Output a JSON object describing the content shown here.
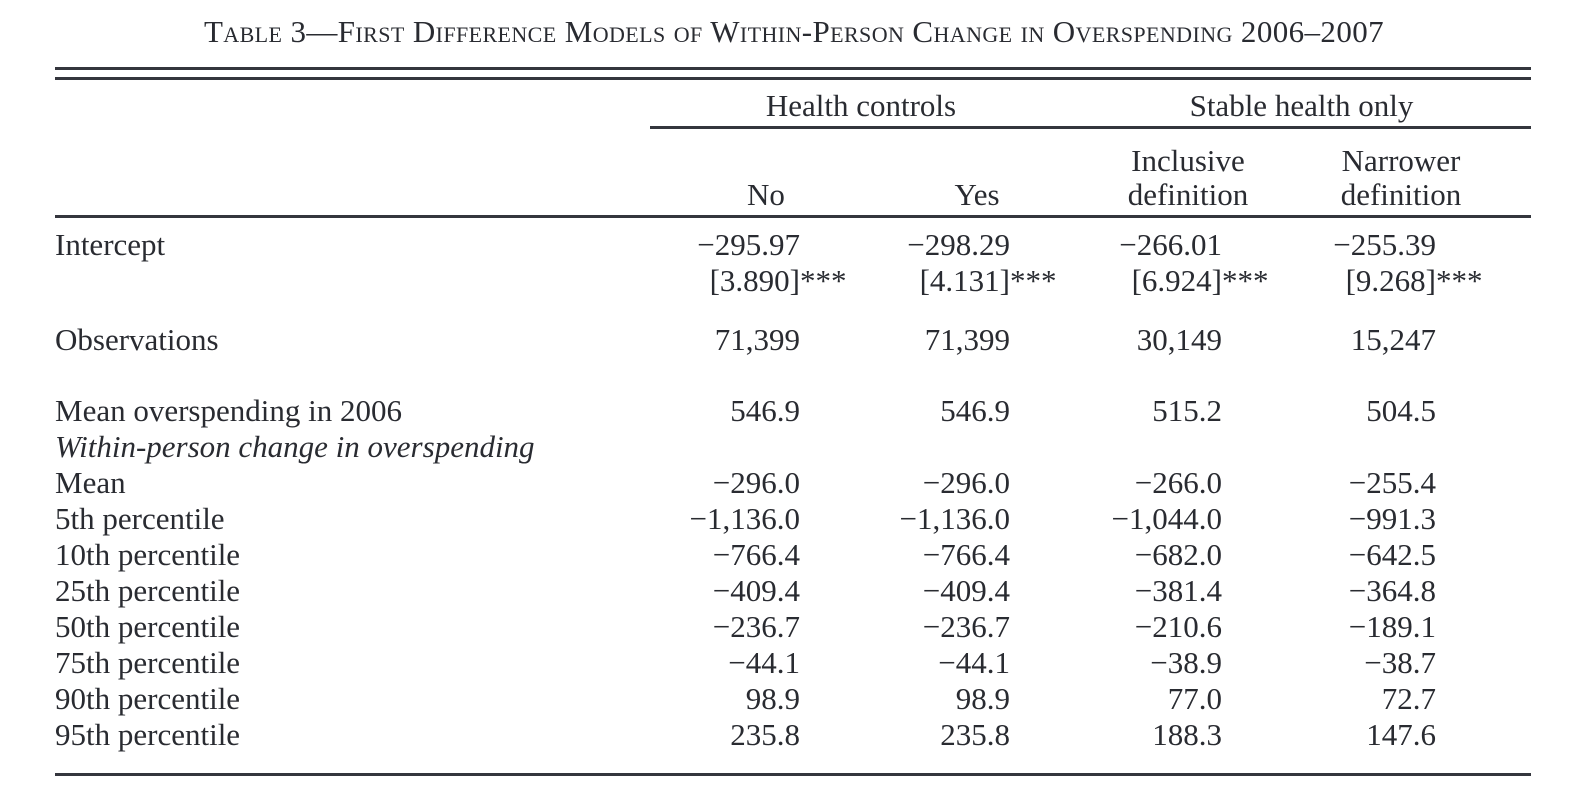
{
  "colors": {
    "ink": "#292b31",
    "rule": "#34363d",
    "background": "#ffffff"
  },
  "title": "Table 3—First Difference Models of Within-Person Change in Overspending 2006–2007",
  "header": {
    "spanners": [
      {
        "label": "Health controls"
      },
      {
        "label": "Stable health only"
      }
    ],
    "columns": [
      {
        "label": "No"
      },
      {
        "label": "Yes"
      },
      {
        "label": "Inclusive definition"
      },
      {
        "label": "Narrower definition"
      }
    ]
  },
  "rows": [
    {
      "label": "Intercept",
      "values": [
        "−295.97",
        "−298.29",
        "−266.01",
        "−255.39"
      ]
    },
    {
      "label": "",
      "values": [
        "[3.890]",
        "[4.131]",
        "[6.924]",
        "[9.268]"
      ],
      "stars": [
        "***",
        "***",
        "***",
        "***"
      ]
    },
    {
      "label": "Observations",
      "values": [
        "71,399",
        "71,399",
        "30,149",
        "15,247"
      ]
    },
    {
      "label": "Mean overspending in 2006",
      "values": [
        "546.9",
        "546.9",
        "515.2",
        "504.5"
      ]
    },
    {
      "label": "Within-person change in overspending",
      "style": "italic",
      "values": [
        "",
        "",
        "",
        ""
      ]
    },
    {
      "label": "Mean",
      "values": [
        "−296.0",
        "−296.0",
        "−266.0",
        "−255.4"
      ]
    },
    {
      "label": "5th percentile",
      "values": [
        "−1,136.0",
        "−1,136.0",
        "−1,044.0",
        "−991.3"
      ]
    },
    {
      "label": "10th percentile",
      "values": [
        "−766.4",
        "−766.4",
        "−682.0",
        "−642.5"
      ]
    },
    {
      "label": "25th percentile",
      "values": [
        "−409.4",
        "−409.4",
        "−381.4",
        "−364.8"
      ]
    },
    {
      "label": "50th percentile",
      "values": [
        "−236.7",
        "−236.7",
        "−210.6",
        "−189.1"
      ]
    },
    {
      "label": "75th percentile",
      "values": [
        "−44.1",
        "−44.1",
        "−38.9",
        "−38.7"
      ]
    },
    {
      "label": "90th percentile",
      "values": [
        "98.9",
        "98.9",
        "77.0",
        "72.7"
      ]
    },
    {
      "label": "95th percentile",
      "values": [
        "235.8",
        "235.8",
        "188.3",
        "147.6"
      ]
    }
  ]
}
